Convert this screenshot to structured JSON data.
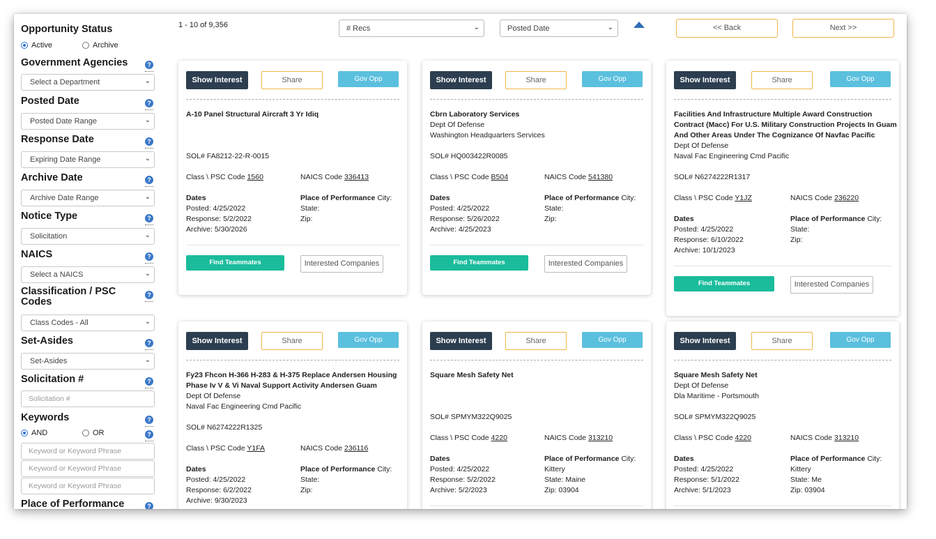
{
  "sidebar": {
    "opportunity_status": {
      "title": "Opportunity Status",
      "active": "Active",
      "archive": "Archive"
    },
    "government_agencies": {
      "title": "Government Agencies",
      "select": "Select a Department"
    },
    "posted_date": {
      "title": "Posted Date",
      "select": "Posted Date Range"
    },
    "response_date": {
      "title": "Response Date",
      "select": "Expiring Date Range"
    },
    "archive_date": {
      "title": "Archive Date",
      "select": "Archive Date Range"
    },
    "notice_type": {
      "title": "Notice Type",
      "select": "Solicitation"
    },
    "naics": {
      "title": "NAICS",
      "select": "Select a NAICS"
    },
    "classification": {
      "title_line1": "Classification / PSC",
      "title_line2": "Codes",
      "select": "Class Codes - All"
    },
    "set_asides": {
      "title": "Set-Asides",
      "select": "Set-Asides"
    },
    "solicitation": {
      "title": "Solicitation #",
      "placeholder": "Solicitation #"
    },
    "keywords": {
      "title": "Keywords",
      "and": "AND",
      "or": "OR",
      "placeholder": "Keyword or Keyword Phrase"
    },
    "place_of_performance": {
      "title": "Place of Performance"
    },
    "help_glyph": "?"
  },
  "topbar": {
    "count": "1 - 10 of 9,356",
    "recs_select": "# Recs",
    "sort_select": "Posted Date",
    "back": "<< Back",
    "next": "Next >>",
    "chevron": "⌄"
  },
  "card_labels": {
    "show_interest": "Show Interest",
    "share": "Share",
    "gov_opp": "Gov Opp",
    "find_teammates": "Find Teammates",
    "interested_companies": "Interested Companies",
    "class_psc": "Class \\ PSC Code",
    "naics_code": "NAICS Code",
    "dates": "Dates",
    "place_of_performance": "Place of Performance",
    "city": "City:",
    "state": "State:",
    "zip": "Zip:"
  },
  "cards": [
    {
      "title": "A-10 Panel Structural Aircraft 3 Yr Idiq",
      "sol": "SOL# FA8212-22-R-0015",
      "psc": "1560",
      "naics": "336413",
      "posted": "Posted: 4/25/2022",
      "response": "Response: 5/2/2022",
      "archive": "Archive: 5/30/2026"
    },
    {
      "title": "Cbrn Laboratory Services",
      "agency": "Dept Of Defense",
      "office": "Washington Headquarters Services",
      "sol": "SOL# HQ003422R0085",
      "psc": "B504",
      "naics": "541380",
      "posted": "Posted: 4/25/2022",
      "response": "Response: 5/26/2022",
      "archive": "Archive: 4/25/2023"
    },
    {
      "title_l1": "Facilities And Infrastructure Multiple Award Construction",
      "title_l2": "Contract (Macc) For U.S. Military Construction Projects In Guam",
      "title_l3": "And Other Areas Under The Cognizance Of Navfac Pacific",
      "agency": "Dept Of Defense",
      "office": "Naval Fac Engineering Cmd Pacific",
      "sol": "SOL# N6274222R1317",
      "psc": "Y1JZ",
      "naics": "236220",
      "posted": "Posted: 4/25/2022",
      "response": "Response: 6/10/2022",
      "archive": "Archive: 10/1/2023"
    },
    {
      "title_l1": "Fy23 Fhcon H-366 H-283 & H-375 Replace Andersen Housing",
      "title_l2": "Phase Iv V & Vi Naval Support Activity Andersen Guam",
      "agency": "Dept Of Defense",
      "office": "Naval Fac Engineering Cmd Pacific",
      "sol": "SOL# N6274222R1325",
      "psc": "Y1FA",
      "naics": "236116",
      "posted": "Posted: 4/25/2022",
      "response": "Response: 6/2/2022",
      "archive": "Archive: 9/30/2023"
    },
    {
      "title": "Square Mesh Safety Net",
      "sol": "SOL# SPMYM322Q9025",
      "psc": "4220",
      "naics": "313210",
      "posted": "Posted: 4/25/2022",
      "response": "Response: 5/2/2022",
      "archive": "Archive: 5/2/2023",
      "city": "Kittery",
      "state": "State: Maine",
      "zip": "Zip: 03904"
    },
    {
      "title": "Square Mesh Safety Net",
      "agency": "Dept Of Defense",
      "office": "Dla Maritime - Portsmouth",
      "sol": "SOL# SPMYM322Q9025",
      "psc": "4220",
      "naics": "313210",
      "posted": "Posted: 4/25/2022",
      "response": "Response: 5/1/2022",
      "archive": "Archive: 5/1/2023",
      "city": "Kittery",
      "state": "State: Me",
      "zip": "Zip: 03904"
    }
  ]
}
